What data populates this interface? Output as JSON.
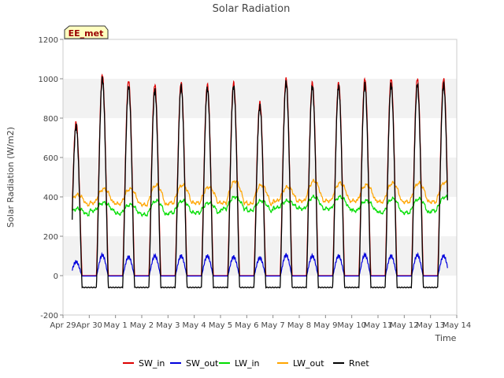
{
  "chart_data": {
    "type": "line",
    "title": "Solar Radiation",
    "xlabel": "Time",
    "ylabel": "Solar Radiation (W/m2)",
    "station_label": "EE_met",
    "ylim": [
      -200,
      1200
    ],
    "yticks": [
      -200,
      0,
      200,
      400,
      600,
      800,
      1000,
      1200
    ],
    "xlim": [
      0,
      15
    ],
    "xticks": [
      {
        "pos": 0,
        "label": "Apr 29"
      },
      {
        "pos": 1,
        "label": "Apr 30"
      },
      {
        "pos": 2,
        "label": "May 1"
      },
      {
        "pos": 3,
        "label": "May 2"
      },
      {
        "pos": 4,
        "label": "May 3"
      },
      {
        "pos": 5,
        "label": "May 4"
      },
      {
        "pos": 6,
        "label": "May 5"
      },
      {
        "pos": 7,
        "label": "May 6"
      },
      {
        "pos": 8,
        "label": "May 7"
      },
      {
        "pos": 9,
        "label": "May 8"
      },
      {
        "pos": 10,
        "label": "May 9"
      },
      {
        "pos": 11,
        "label": "May 10"
      },
      {
        "pos": 12,
        "label": "May 11"
      },
      {
        "pos": 13,
        "label": "May 12"
      },
      {
        "pos": 14,
        "label": "May 13"
      },
      {
        "pos": 15,
        "label": "May 14"
      }
    ],
    "grid": "horizontal bands",
    "legend": "bottom",
    "series": [
      {
        "name": "SW_in",
        "color": "#dd0000",
        "night": 0,
        "peaks": [
          780,
          1020,
          990,
          970,
          980,
          970,
          980,
          880,
          1000,
          980,
          980,
          1000,
          1000,
          1000,
          1000
        ]
      },
      {
        "name": "SW_out",
        "color": "#0000dd",
        "night": -2,
        "peaks": [
          70,
          105,
          95,
          100,
          100,
          100,
          95,
          90,
          105,
          100,
          100,
          105,
          100,
          105,
          100
        ]
      },
      {
        "name": "LW_in",
        "color": "#00dd00",
        "base": [
          310,
          330,
          315,
          310,
          320,
          320,
          340,
          330,
          345,
          340,
          340,
          330,
          320,
          320,
          330
        ],
        "peaks": [
          340,
          370,
          360,
          380,
          380,
          370,
          400,
          380,
          380,
          400,
          400,
          380,
          390,
          390,
          400
        ]
      },
      {
        "name": "LW_out",
        "color": "#ffa500",
        "base": [
          360,
          370,
          365,
          360,
          370,
          370,
          370,
          365,
          380,
          380,
          380,
          380,
          375,
          375,
          375
        ],
        "peaks": [
          410,
          440,
          440,
          460,
          460,
          450,
          480,
          460,
          450,
          480,
          470,
          460,
          470,
          470,
          475
        ]
      },
      {
        "name": "Rnet",
        "color": "#000000",
        "night": -60,
        "peaks": [
          760,
          1000,
          960,
          940,
          960,
          950,
          960,
          860,
          980,
          960,
          960,
          970,
          970,
          970,
          970
        ]
      }
    ]
  }
}
